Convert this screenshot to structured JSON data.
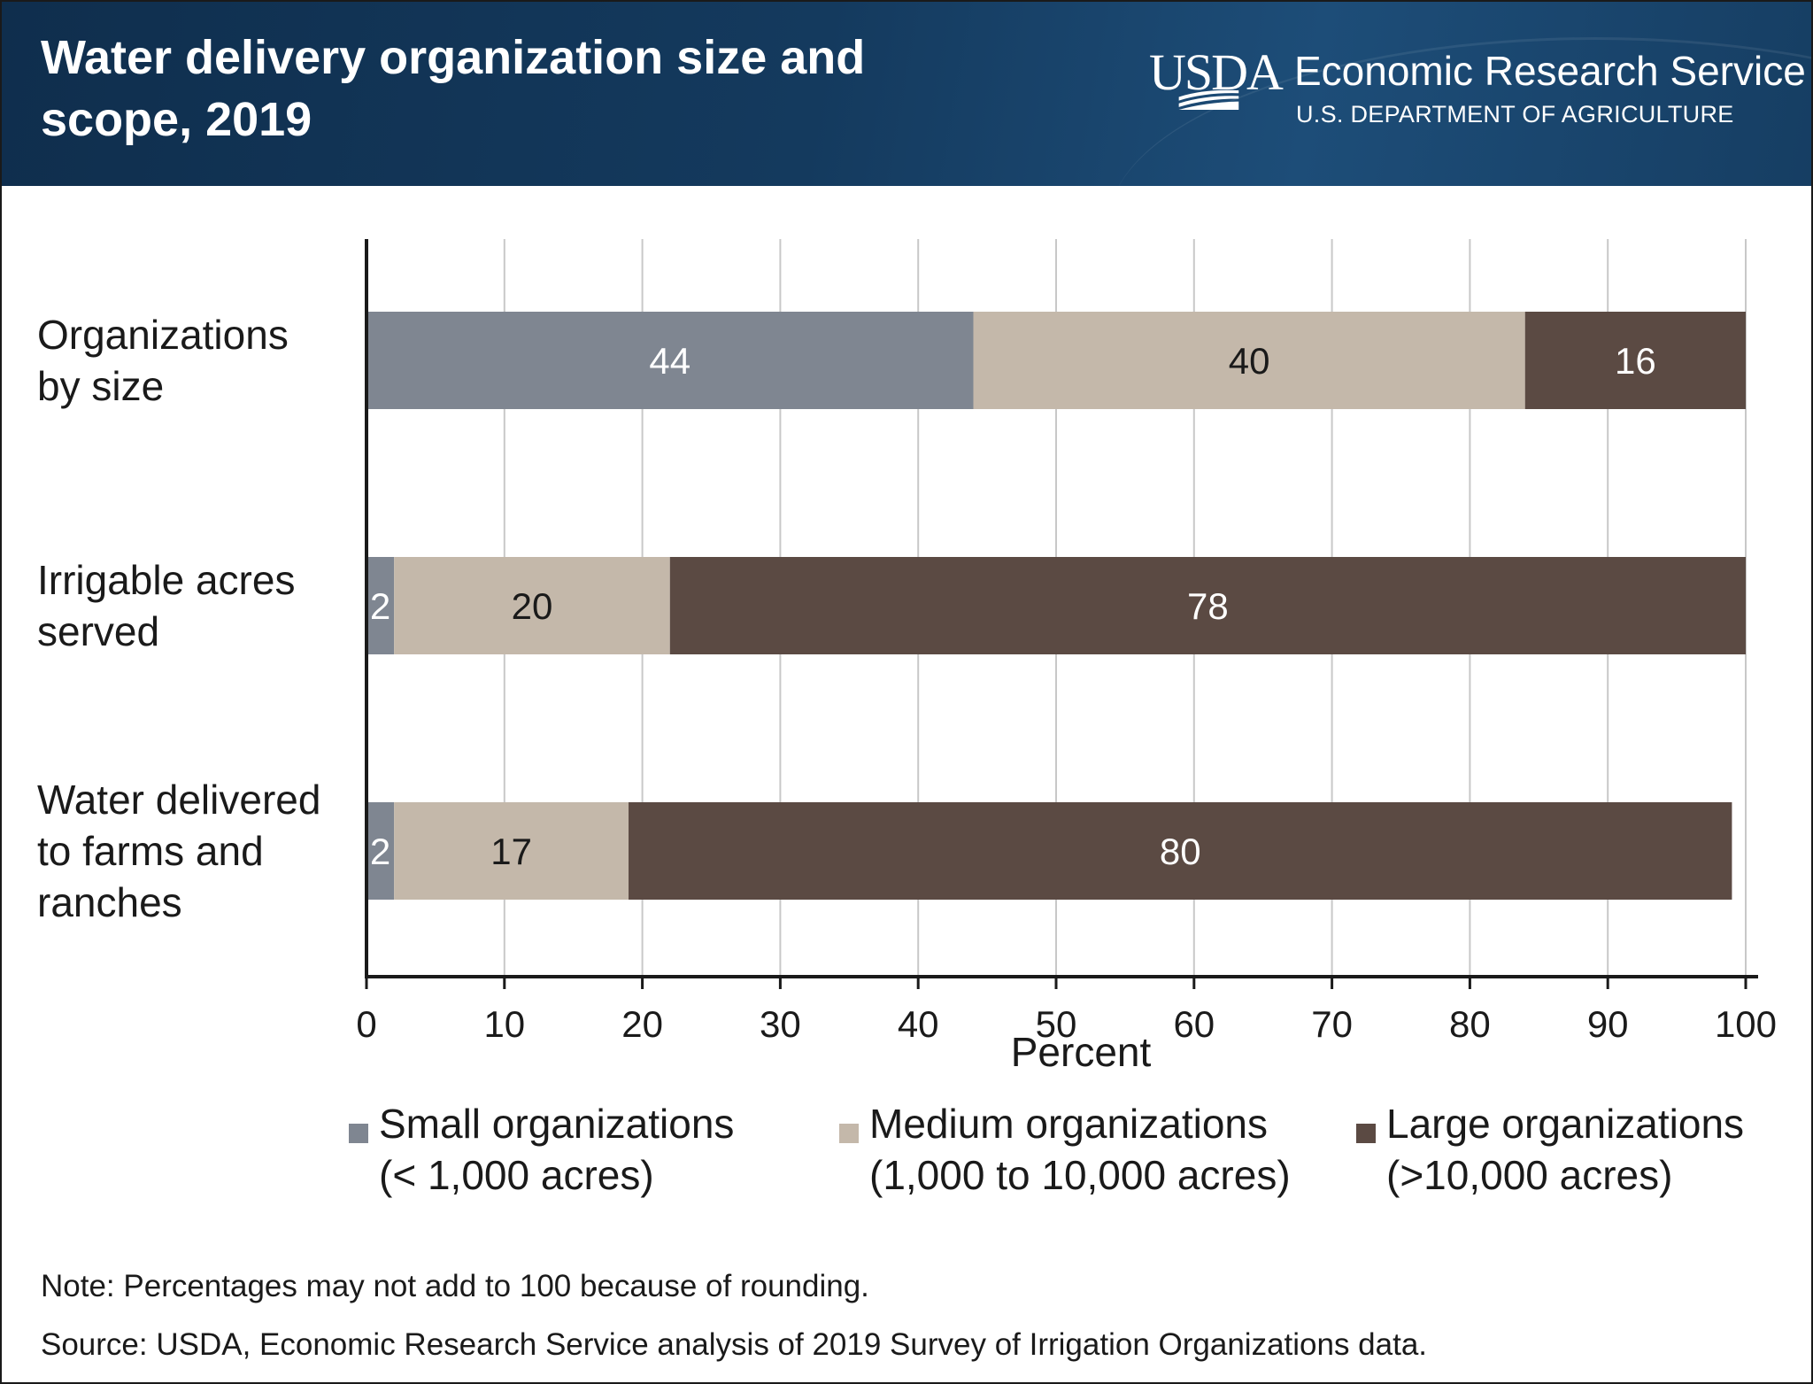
{
  "header": {
    "title_line1": "Water delivery organization size and",
    "title_line2": "scope, 2019",
    "logo_text": "USDA",
    "agency_name": "Economic Research Service",
    "department": "U.S. DEPARTMENT OF AGRICULTURE"
  },
  "colors": {
    "small": "#7f8691",
    "medium": "#c4b8aa",
    "large": "#5b4a43",
    "header_bg": "#143a5e",
    "grid": "#c8c8c8"
  },
  "chart_data": {
    "type": "bar",
    "orientation": "horizontal",
    "stacked": true,
    "categories": [
      [
        "Organizations",
        "by size"
      ],
      [
        "Irrigable acres",
        "served"
      ],
      [
        "Water delivered",
        "to farms and",
        "ranches"
      ]
    ],
    "series": [
      {
        "name": "Small organizations (< 1,000 acres)",
        "key": "small",
        "values": [
          44,
          2,
          2
        ]
      },
      {
        "name": "Medium organizations (1,000 to 10,000 acres)",
        "key": "medium",
        "values": [
          40,
          20,
          17
        ]
      },
      {
        "name": "Large organizations (>10,000 acres)",
        "key": "large",
        "values": [
          16,
          78,
          80
        ]
      }
    ],
    "xlabel": "Percent",
    "xlim": [
      0,
      100
    ],
    "xticks": [
      0,
      10,
      20,
      30,
      40,
      50,
      60,
      70,
      80,
      90,
      100
    ],
    "grid": "vertical",
    "legend_position": "bottom"
  },
  "legend": [
    {
      "line1": "Small organizations",
      "line2": "(< 1,000 acres)"
    },
    {
      "line1": "Medium organizations",
      "line2": "(1,000 to 10,000 acres)"
    },
    {
      "line1": "Large organizations",
      "line2": "(>10,000 acres)"
    }
  ],
  "notes": {
    "note": "Note: Percentages may not add to 100 because of rounding.",
    "source": "Source: USDA, Economic Research Service analysis of 2019 Survey of Irrigation Organizations data."
  }
}
